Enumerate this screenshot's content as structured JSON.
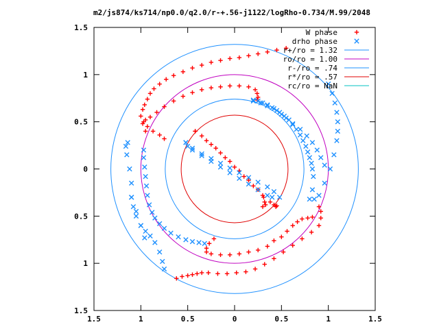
{
  "chart_data": {
    "type": "scatter",
    "title": "m2/js874/ks714/np0.0/q2.0/r-+.56-j1122/logRho-0.734/M.99/2048",
    "xlim": [
      -1.5,
      1.5
    ],
    "ylim": [
      -1.5,
      1.5
    ],
    "x_tick_values": [
      -1.5,
      -1,
      -0.5,
      0,
      0.5,
      1,
      1.5
    ],
    "x_tick_labels": [
      "1.5",
      "1",
      "0.5",
      "0",
      "0.5",
      "1",
      "1.5"
    ],
    "y_tick_values": [
      1.5,
      1,
      0.5,
      0,
      -0.5,
      -1,
      -1.5
    ],
    "y_tick_labels": [
      "1.5",
      "1",
      "0.5",
      "0",
      "0.5",
      "1",
      "1.5"
    ],
    "grid": false,
    "legend_position": "top-right",
    "series": [
      {
        "name": "W phase",
        "marker": "plus",
        "color": "#ff0000",
        "x": [
          -0.42,
          -0.35,
          -0.25,
          -0.15,
          -0.05,
          0.05,
          0.15,
          0.25,
          0.31,
          0.32,
          0.33,
          0.3,
          -0.95,
          -0.98,
          -1.0,
          -0.98,
          -0.96,
          -0.93,
          -0.9,
          -0.86,
          -0.8,
          -0.73,
          -0.65,
          -0.55,
          -0.45,
          -0.35,
          -0.25,
          -0.15,
          -0.05,
          0.05,
          0.15,
          0.25,
          0.35,
          0.45,
          0.55,
          -0.75,
          -0.8,
          -0.87,
          -0.93,
          -0.97,
          -0.95,
          -0.9,
          -0.83,
          -0.75,
          -0.65,
          -0.55,
          -0.45,
          -0.35,
          -0.25,
          -0.15,
          -0.05,
          0.05,
          0.15,
          0.22,
          0.24,
          0.25,
          0.24,
          -0.42,
          -0.3,
          -0.2,
          -0.1,
          0.0,
          0.1,
          0.2,
          0.3,
          0.38,
          0.42,
          0.45,
          0.44,
          -0.22,
          -0.27,
          -0.3,
          -0.3,
          -0.25,
          -0.15,
          -0.05,
          0.05,
          0.15,
          0.25,
          0.35,
          0.42,
          0.5,
          0.56,
          0.62,
          0.67,
          0.72,
          0.78,
          0.83,
          -0.62,
          -0.56,
          -0.5,
          -0.45,
          -0.4,
          -0.35,
          -0.28,
          -0.18,
          -0.08,
          0.02,
          0.12,
          0.22,
          0.32,
          0.42,
          0.52,
          0.62,
          0.72,
          0.82,
          0.9,
          0.92,
          0.92,
          0.9
        ],
        "y": [
          0.4,
          0.35,
          0.26,
          0.17,
          0.08,
          -0.02,
          -0.12,
          -0.22,
          -0.3,
          -0.35,
          -0.38,
          -0.4,
          0.4,
          0.48,
          0.56,
          0.63,
          0.68,
          0.74,
          0.8,
          0.85,
          0.9,
          0.95,
          0.99,
          1.03,
          1.07,
          1.1,
          1.13,
          1.15,
          1.17,
          1.18,
          1.2,
          1.22,
          1.24,
          1.26,
          1.28,
          0.32,
          0.36,
          0.4,
          0.45,
          0.5,
          0.52,
          0.55,
          0.6,
          0.66,
          0.72,
          0.77,
          0.81,
          0.84,
          0.86,
          0.87,
          0.88,
          0.88,
          0.87,
          0.84,
          0.8,
          0.76,
          0.73,
          0.4,
          0.3,
          0.22,
          0.12,
          0.02,
          -0.08,
          -0.18,
          -0.28,
          -0.35,
          -0.38,
          -0.39,
          -0.4,
          -0.74,
          -0.79,
          -0.84,
          -0.88,
          -0.9,
          -0.91,
          -0.91,
          -0.9,
          -0.88,
          -0.86,
          -0.82,
          -0.76,
          -0.72,
          -0.66,
          -0.6,
          -0.56,
          -0.53,
          -0.52,
          -0.51,
          -1.16,
          -1.14,
          -1.13,
          -1.12,
          -1.11,
          -1.1,
          -1.1,
          -1.11,
          -1.11,
          -1.1,
          -1.09,
          -1.06,
          -1.01,
          -0.95,
          -0.88,
          -0.81,
          -0.74,
          -0.67,
          -0.6,
          -0.52,
          -0.45,
          -0.4
        ]
      },
      {
        "name": "drho phase",
        "marker": "cross",
        "color": "#1e90ff",
        "x": [
          -0.52,
          -0.45,
          -0.35,
          -0.25,
          -0.15,
          -0.05,
          0.05,
          0.15,
          0.25,
          0.35,
          0.42,
          0.48,
          -1.14,
          -1.16,
          -1.15,
          -1.12,
          -1.1,
          -1.1,
          -1.05,
          -1.0,
          -0.96,
          -1.1,
          -1.08,
          -1.05,
          -1.0,
          -0.95,
          -0.9,
          -0.85,
          -0.8,
          -0.77,
          -0.75,
          -0.97,
          -0.97,
          -0.96,
          -0.95,
          -0.94,
          -0.93,
          -0.91,
          -0.88,
          -0.85,
          -0.8,
          -0.75,
          -0.68,
          -0.6,
          -0.52,
          -0.45,
          -0.38,
          -0.32,
          0.2,
          0.25,
          0.3,
          0.35,
          0.4,
          0.45,
          0.5,
          0.55,
          0.62,
          0.7,
          0.77,
          0.83,
          0.88,
          0.92,
          0.96,
          1.0,
          1.04,
          1.07,
          1.09,
          1.1,
          1.1,
          1.09,
          1.06,
          1.02,
          0.96,
          0.9,
          0.85,
          0.2,
          0.28,
          0.35,
          0.42,
          0.48,
          0.53,
          0.58,
          0.62,
          0.66,
          0.7,
          0.73,
          0.76,
          0.78,
          0.8,
          0.82,
          0.83,
          0.84,
          0.83,
          0.8,
          0.4,
          0.35,
          0.25,
          0.15,
          0.05,
          -0.05,
          -0.15,
          -0.25,
          -0.35,
          -0.45,
          -0.5,
          -0.52
        ],
        "y": [
          0.28,
          0.22,
          0.16,
          0.11,
          0.06,
          0.01,
          -0.04,
          -0.09,
          -0.14,
          -0.19,
          -0.24,
          -0.3,
          0.28,
          0.24,
          0.15,
          0.0,
          -0.15,
          -0.3,
          -0.45,
          -0.6,
          -0.73,
          -0.3,
          -0.4,
          -0.5,
          -0.6,
          -0.66,
          -0.71,
          -0.78,
          -0.88,
          -0.98,
          -1.06,
          0.2,
          0.12,
          0.02,
          -0.08,
          -0.18,
          -0.28,
          -0.38,
          -0.46,
          -0.52,
          -0.58,
          -0.63,
          -0.68,
          -0.72,
          -0.75,
          -0.77,
          -0.78,
          -0.79,
          0.73,
          0.72,
          0.7,
          0.68,
          0.65,
          0.62,
          0.58,
          0.54,
          0.48,
          0.42,
          0.35,
          0.28,
          0.2,
          0.12,
          0.04,
          0.9,
          0.8,
          0.7,
          0.6,
          0.5,
          0.4,
          0.3,
          0.15,
          0.0,
          -0.15,
          -0.28,
          -0.32,
          0.72,
          0.7,
          0.67,
          0.64,
          0.6,
          0.56,
          0.52,
          0.47,
          0.42,
          0.36,
          0.3,
          0.24,
          0.18,
          0.12,
          0.06,
          0.0,
          -0.08,
          -0.22,
          -0.32,
          -0.3,
          -0.28,
          -0.22,
          -0.16,
          -0.1,
          -0.04,
          0.02,
          0.08,
          0.14,
          0.2,
          0.24,
          0.28
        ]
      },
      {
        "name": "r+/ro = 1.32",
        "type": "circle",
        "radius": 1.32,
        "color": "#1e90ff"
      },
      {
        "name": "ro/ro = 1.00",
        "type": "circle",
        "radius": 1.0,
        "color": "#c000c0"
      },
      {
        "name": "r-/ro = .74",
        "type": "circle",
        "radius": 0.74,
        "color": "#1e90ff"
      },
      {
        "name": "r*/ro = .57",
        "type": "circle",
        "radius": 0.57,
        "color": "#e00000"
      },
      {
        "name": "rc/ro = NaN",
        "type": "circle",
        "radius": null,
        "color": "#00c0c0"
      }
    ]
  }
}
